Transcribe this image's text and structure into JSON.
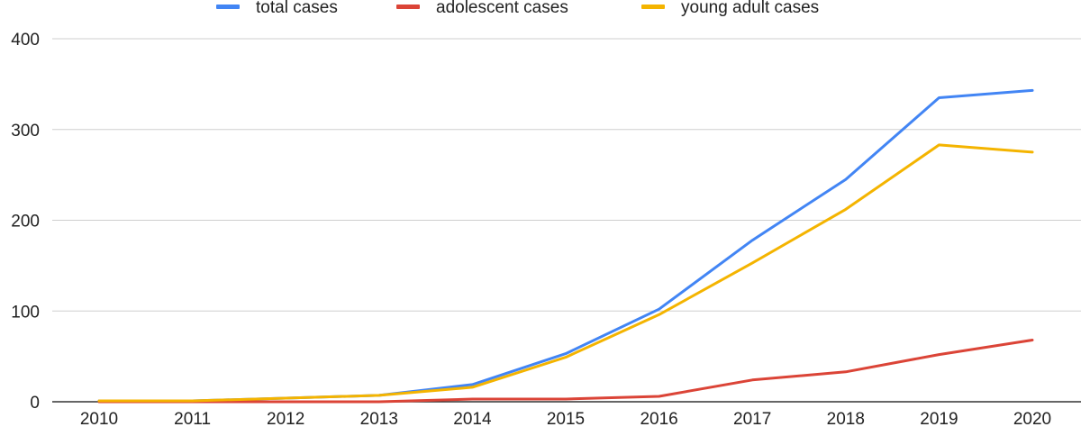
{
  "chart_data": {
    "type": "line",
    "title": "",
    "xlabel": "",
    "ylabel": "",
    "x": [
      "2010",
      "2011",
      "2012",
      "2013",
      "2014",
      "2015",
      "2016",
      "2017",
      "2018",
      "2019",
      "2020"
    ],
    "ylim": [
      0,
      400
    ],
    "yticks": [
      "0",
      "100",
      "200",
      "300",
      "400"
    ],
    "grid": true,
    "legend_position": "top",
    "series": [
      {
        "name": "total cases",
        "color": "#4285f4",
        "values": [
          1,
          1,
          4,
          7,
          19,
          53,
          102,
          178,
          245,
          335,
          343
        ]
      },
      {
        "name": "adolescent cases",
        "color": "#db4437",
        "values": [
          0,
          0,
          0,
          0,
          3,
          3,
          6,
          24,
          33,
          52,
          68
        ]
      },
      {
        "name": "young adult cases",
        "color": "#f4b400",
        "values": [
          1,
          1,
          4,
          7,
          16,
          49,
          96,
          153,
          212,
          283,
          275
        ]
      }
    ]
  }
}
